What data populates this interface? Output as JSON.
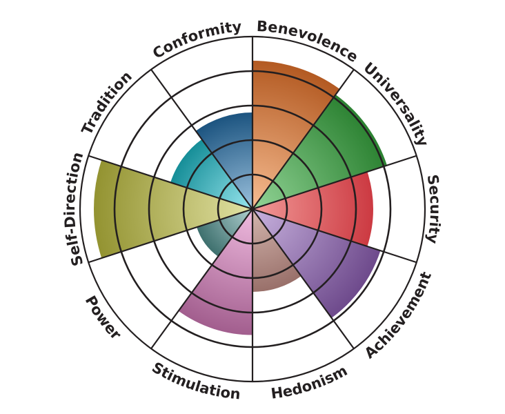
{
  "chart_data": {
    "type": "polar-area",
    "title": "",
    "rlim": [
      0,
      5
    ],
    "ring_count": 5,
    "grid": true,
    "categories": [
      "Benevolence",
      "Universality",
      "Security",
      "Achievement",
      "Hedonism",
      "Stimulation",
      "Power",
      "Self-Direction",
      "Tradition",
      "Conformity"
    ],
    "values": [
      4.3,
      4.1,
      3.5,
      3.9,
      2.4,
      3.65,
      1.7,
      4.6,
      2.5,
      2.8
    ],
    "colors": [
      {
        "dark": "#b35a22",
        "light": "#f7bd92"
      },
      {
        "dark": "#2c8232",
        "light": "#92d496"
      },
      {
        "dark": "#cc3a42",
        "light": "#f29a98"
      },
      {
        "dark": "#6e4a8c",
        "light": "#c8b2de"
      },
      {
        "dark": "#99706a",
        "light": "#d4b6ae"
      },
      {
        "dark": "#a25e8e",
        "light": "#f0bce0"
      },
      {
        "dark": "#3e706e",
        "light": "#b0d0d0"
      },
      {
        "dark": "#939331",
        "light": "#e2e2a4"
      },
      {
        "dark": "#168e98",
        "light": "#98e6ee"
      },
      {
        "dark": "#1c5480",
        "light": "#9cc2de"
      }
    ]
  }
}
